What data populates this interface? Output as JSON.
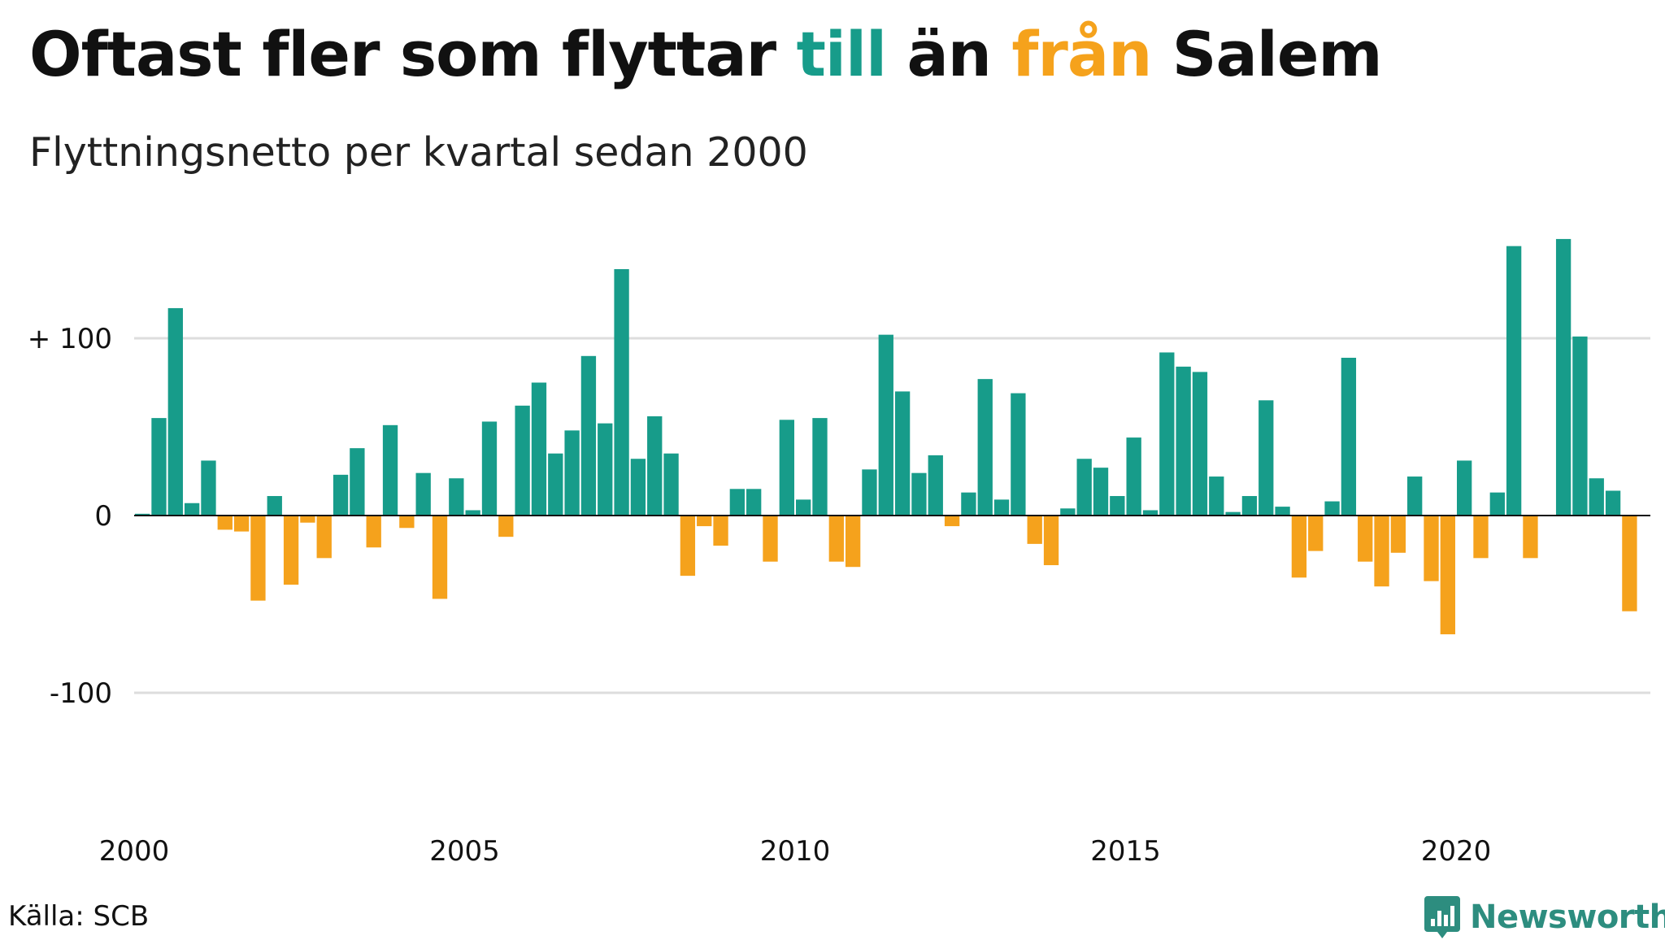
{
  "header": {
    "title_part1": "Oftast fler som flyttar ",
    "title_to": "till",
    "title_part2": " än ",
    "title_from": "från",
    "title_part3": " Salem",
    "subtitle": "Flyttningsnetto per kvartal sedan 2000"
  },
  "footer": {
    "source": "Källa: SCB",
    "brand": "Newsworthy",
    "brand_icon": "newsworthy-logo-icon"
  },
  "colors": {
    "positive": "#179c8a",
    "negative": "#f5a21c",
    "grid": "#dddddd",
    "baseline": "#111111",
    "brand": "#2d8d7f"
  },
  "chart_data": {
    "type": "bar",
    "title": "",
    "xlabel": "",
    "ylabel": "",
    "x_ticks": [
      {
        "value": 2000,
        "label": "2000"
      },
      {
        "value": 2005,
        "label": "2005"
      },
      {
        "value": 2010,
        "label": "2010"
      },
      {
        "value": 2015,
        "label": "2015"
      },
      {
        "value": 2020,
        "label": "2020"
      }
    ],
    "y_ticks": [
      {
        "value": 100,
        "label": "+ 100"
      },
      {
        "value": 0,
        "label": "0"
      },
      {
        "value": -100,
        "label": "-100"
      }
    ],
    "ylim": [
      -175,
      160
    ],
    "grid": true,
    "start_year": 2000,
    "quarters_per_year": 4,
    "values": [
      1,
      55,
      117,
      7,
      31,
      -8,
      -9,
      -48,
      11,
      -39,
      -4,
      -24,
      23,
      38,
      -18,
      51,
      -7,
      24,
      -47,
      21,
      3,
      53,
      -12,
      62,
      75,
      35,
      48,
      90,
      52,
      139,
      32,
      56,
      35,
      -34,
      -6,
      -17,
      15,
      15,
      -26,
      54,
      9,
      55,
      -26,
      -29,
      26,
      102,
      70,
      24,
      34,
      -6,
      13,
      77,
      9,
      69,
      -16,
      -28,
      4,
      32,
      27,
      11,
      44,
      3,
      92,
      84,
      81,
      22,
      2,
      11,
      65,
      5,
      -35,
      -20,
      8,
      89,
      -26,
      -40,
      -21,
      22,
      -37,
      -67,
      31,
      -24,
      13,
      152,
      -24,
      0,
      156,
      101,
      21,
      14,
      -54
    ]
  }
}
